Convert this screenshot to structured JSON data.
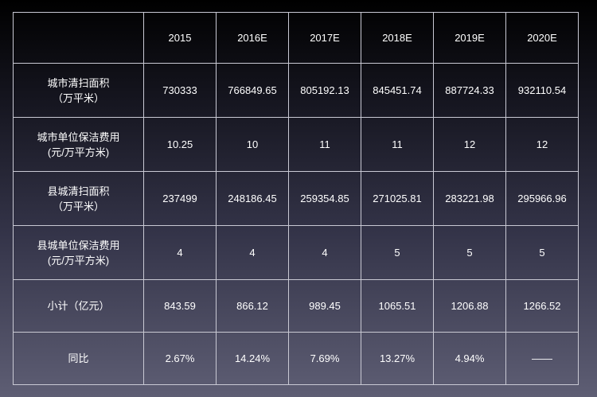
{
  "table": {
    "header": [
      "",
      "2015",
      "2016E",
      "2017E",
      "2018E",
      "2019E",
      "2020E"
    ],
    "rows": [
      {
        "label": [
          "城市清扫面积",
          "（万平米）"
        ],
        "values": [
          "730333",
          "766849.65",
          "805192.13",
          "845451.74",
          "887724.33",
          "932110.54"
        ]
      },
      {
        "label": [
          "城市单位保洁费用",
          "(元/万平方米)"
        ],
        "values": [
          "10.25",
          "10",
          "11",
          "11",
          "12",
          "12"
        ]
      },
      {
        "label": [
          "县城清扫面积",
          "（万平米）"
        ],
        "values": [
          "237499",
          "248186.45",
          "259354.85",
          "271025.81",
          "283221.98",
          "295966.96"
        ]
      },
      {
        "label": [
          "县城单位保洁费用",
          "(元/万平方米)"
        ],
        "values": [
          "4",
          "4",
          "4",
          "5",
          "5",
          "5"
        ]
      },
      {
        "label": [
          "小计（亿元）"
        ],
        "values": [
          "843.59",
          "866.12",
          "989.45",
          "1065.51",
          "1206.88",
          "1266.52"
        ]
      },
      {
        "label": [
          "同比"
        ],
        "values": [
          "2.67%",
          "14.24%",
          "7.69%",
          "13.27%",
          "4.94%",
          "——"
        ]
      }
    ]
  }
}
